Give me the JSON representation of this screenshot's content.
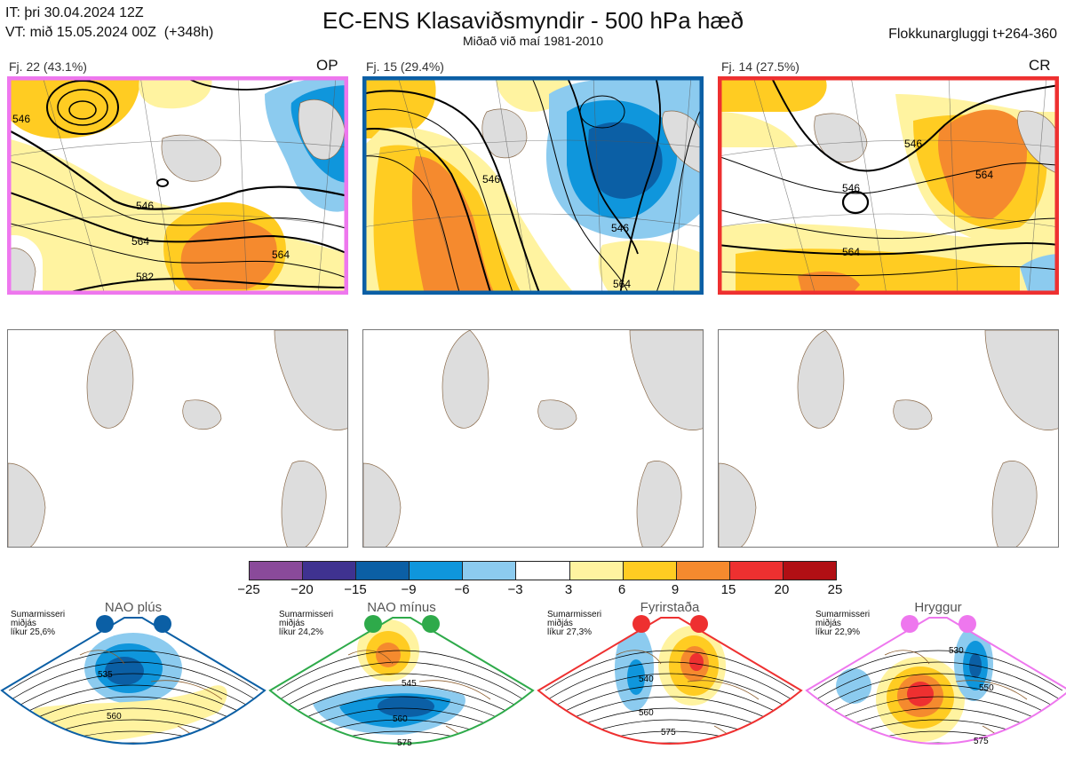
{
  "header": {
    "it_line": "IT: þri 30.04.2024 12Z",
    "vt_line": "VT: mið 15.05.2024 00Z  (+348h)",
    "title": "EC-ENS Klasaviðsmyndir - 500 hPa hæð",
    "subtitle": "Miðað við maí 1981-2010",
    "window": "Flokkunargluggi t+264-360"
  },
  "clusters": [
    {
      "label": "Fj. 22 (43.1%)",
      "tag": "OP",
      "color": "#ee77ee",
      "contours": [
        "546",
        "546",
        "564",
        "564",
        "582"
      ]
    },
    {
      "label": "Fj. 15 (29.4%)",
      "tag": "",
      "color": "#0b5fa5",
      "contours": [
        "546",
        "546",
        "564"
      ]
    },
    {
      "label": "Fj. 14 (27.5%)",
      "tag": "CR",
      "color": "#ee3030",
      "contours": [
        "546",
        "546",
        "564",
        "564"
      ]
    }
  ],
  "colorbar": {
    "ticks": [
      "−25",
      "−20",
      "−15",
      "−9",
      "−6",
      "−3",
      "3",
      "6",
      "9",
      "15",
      "20",
      "25"
    ],
    "colors": [
      "#8a4a9a",
      "#3f3290",
      "#0b5fa5",
      "#0f96dc",
      "#8ccbef",
      "#ffffff",
      "#fff3a0",
      "#ffcc22",
      "#f58a2e",
      "#ee3030",
      "#b10f14"
    ]
  },
  "regimes": [
    {
      "name": "NAO plús",
      "side": [
        "Sumarmisseri",
        "miðjás",
        "líkur 25,6%"
      ],
      "color": "#0b5fa5",
      "labels": [
        "535",
        "560"
      ]
    },
    {
      "name": "NAO mínus",
      "side": [
        "Sumarmisseri",
        "miðjás",
        "líkur 24,2%"
      ],
      "color": "#2eaa4a",
      "labels": [
        "545",
        "560",
        "575"
      ]
    },
    {
      "name": "Fyrirstaða",
      "side": [
        "Sumarmisseri",
        "miðjás",
        "líkur 27,3%"
      ],
      "color": "#ee3030",
      "labels": [
        "540",
        "560",
        "575"
      ]
    },
    {
      "name": "Hryggur",
      "side": [
        "Sumarmisseri",
        "miðjás",
        "líkur 22,9%"
      ],
      "color": "#ee77ee",
      "labels": [
        "530",
        "550",
        "575"
      ]
    }
  ]
}
